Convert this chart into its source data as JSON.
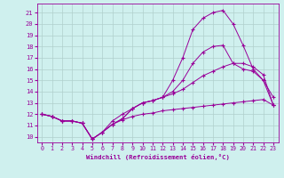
{
  "xlabel": "Windchill (Refroidissement éolien,°C)",
  "background_color": "#cff0ee",
  "line_color": "#990099",
  "grid_color": "#b0d0cc",
  "xlim": [
    -0.5,
    23.5
  ],
  "ylim": [
    9.5,
    21.8
  ],
  "xticks": [
    0,
    1,
    2,
    3,
    4,
    5,
    6,
    7,
    8,
    9,
    10,
    11,
    12,
    13,
    14,
    15,
    16,
    17,
    18,
    19,
    20,
    21,
    22,
    23
  ],
  "yticks": [
    10,
    11,
    12,
    13,
    14,
    15,
    16,
    17,
    18,
    19,
    20,
    21
  ],
  "lines": [
    {
      "x": [
        0,
        1,
        2,
        3,
        4,
        5,
        6,
        7,
        8,
        9,
        10,
        11,
        12,
        13,
        14,
        15,
        16,
        17,
        18,
        19,
        20,
        21,
        22,
        23
      ],
      "y": [
        12.0,
        11.8,
        11.4,
        11.4,
        11.2,
        9.8,
        10.4,
        11.1,
        11.6,
        12.5,
        13.0,
        13.2,
        13.5,
        15.0,
        17.0,
        19.5,
        20.5,
        21.0,
        21.2,
        20.0,
        18.1,
        16.0,
        15.0,
        13.5
      ]
    },
    {
      "x": [
        0,
        1,
        2,
        3,
        4,
        5,
        6,
        7,
        8,
        9,
        10,
        11,
        12,
        13,
        14,
        15,
        16,
        17,
        18,
        19,
        20,
        21,
        22,
        23
      ],
      "y": [
        12.0,
        11.8,
        11.4,
        11.4,
        11.2,
        9.8,
        10.4,
        11.1,
        11.6,
        12.5,
        13.0,
        13.2,
        13.5,
        14.0,
        15.0,
        16.5,
        17.5,
        18.0,
        18.1,
        16.5,
        16.0,
        15.8,
        15.0,
        12.8
      ]
    },
    {
      "x": [
        0,
        1,
        2,
        3,
        4,
        5,
        6,
        7,
        8,
        9,
        10,
        11,
        12,
        13,
        14,
        15,
        16,
        17,
        18,
        19,
        20,
        21,
        22,
        23
      ],
      "y": [
        12.0,
        11.8,
        11.4,
        11.4,
        11.2,
        9.8,
        10.4,
        11.4,
        12.0,
        12.5,
        13.0,
        13.2,
        13.5,
        13.8,
        14.2,
        14.8,
        15.4,
        15.8,
        16.2,
        16.5,
        16.5,
        16.2,
        15.5,
        12.8
      ]
    },
    {
      "x": [
        0,
        1,
        2,
        3,
        4,
        5,
        6,
        7,
        8,
        9,
        10,
        11,
        12,
        13,
        14,
        15,
        16,
        17,
        18,
        19,
        20,
        21,
        22,
        23
      ],
      "y": [
        12.0,
        11.8,
        11.4,
        11.4,
        11.2,
        9.8,
        10.4,
        11.1,
        11.5,
        11.8,
        12.0,
        12.1,
        12.3,
        12.4,
        12.5,
        12.6,
        12.7,
        12.8,
        12.9,
        13.0,
        13.1,
        13.2,
        13.3,
        12.8
      ]
    }
  ]
}
